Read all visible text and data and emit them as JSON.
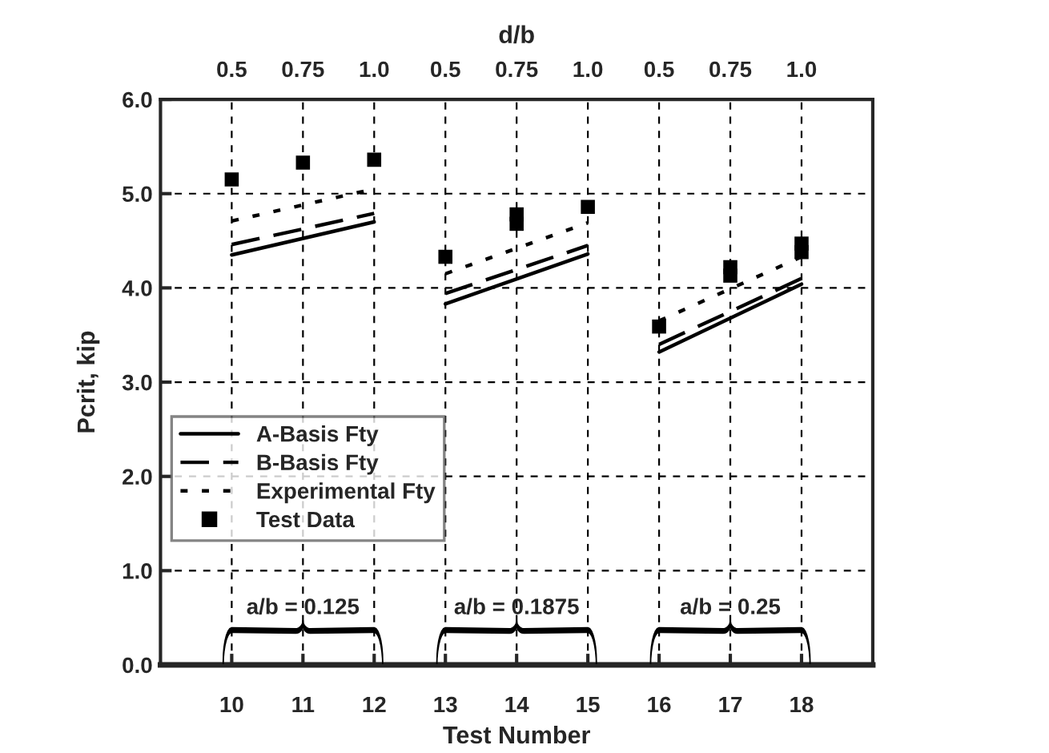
{
  "chart_data": {
    "type": "line",
    "xlabel": "Test Number",
    "x2label": "d/b",
    "ylabel": "Pcrit, kip",
    "xlim": [
      9,
      19
    ],
    "xticks": [
      10,
      11,
      12,
      13,
      14,
      15,
      16,
      17,
      18
    ],
    "ylim": [
      0,
      6
    ],
    "yticks": [
      {
        "value": 0,
        "label": "0.0"
      },
      {
        "value": 1,
        "label": "1.0"
      },
      {
        "value": 2,
        "label": "2.0"
      },
      {
        "value": 3,
        "label": "3.0"
      },
      {
        "value": 4,
        "label": "4.0"
      },
      {
        "value": 5,
        "label": "5.0"
      },
      {
        "value": 6,
        "label": "6.0"
      }
    ],
    "grid": true,
    "legend": "lower left",
    "series": [
      {
        "name": "A-Basis Fty",
        "line_style": "solid",
        "color": "#000000",
        "x": [
          10,
          12,
          12.5,
          13,
          15,
          15.5,
          16,
          18
        ],
        "values": [
          4.35,
          4.7,
          null,
          3.83,
          4.36,
          null,
          3.32,
          4.04
        ]
      },
      {
        "name": "B-Basis Fty",
        "line_style": "dashed",
        "color": "#000000",
        "x": [
          10,
          12,
          12.5,
          13,
          15,
          15.5,
          16,
          18
        ],
        "values": [
          4.46,
          4.79,
          null,
          3.94,
          4.45,
          null,
          3.4,
          4.1
        ]
      },
      {
        "name": "Experimental Fty",
        "line_style": "dotted",
        "color": "#000000",
        "x": [
          10,
          12,
          12.5,
          13,
          15,
          15.5,
          16,
          18
        ],
        "values": [
          4.71,
          5.05,
          null,
          4.15,
          4.69,
          null,
          3.65,
          4.33
        ]
      },
      {
        "name": "Test Data",
        "type": "scatter",
        "marker": "square",
        "color": "#000000",
        "x": [
          10,
          11,
          12,
          13,
          14,
          14,
          15,
          16,
          17,
          17,
          18,
          18
        ],
        "values": [
          5.15,
          5.33,
          5.36,
          4.33,
          4.68,
          4.78,
          4.86,
          3.59,
          4.13,
          4.22,
          4.38,
          4.47
        ]
      }
    ],
    "annotations": [
      "a/b = 0.125",
      "a/b = 0.1875",
      "a/b = 0.25",
      "0.5",
      "0.75",
      "1.0",
      "0.5",
      "0.75",
      "1.0",
      "0.5",
      "0.75",
      "1.0"
    ]
  }
}
